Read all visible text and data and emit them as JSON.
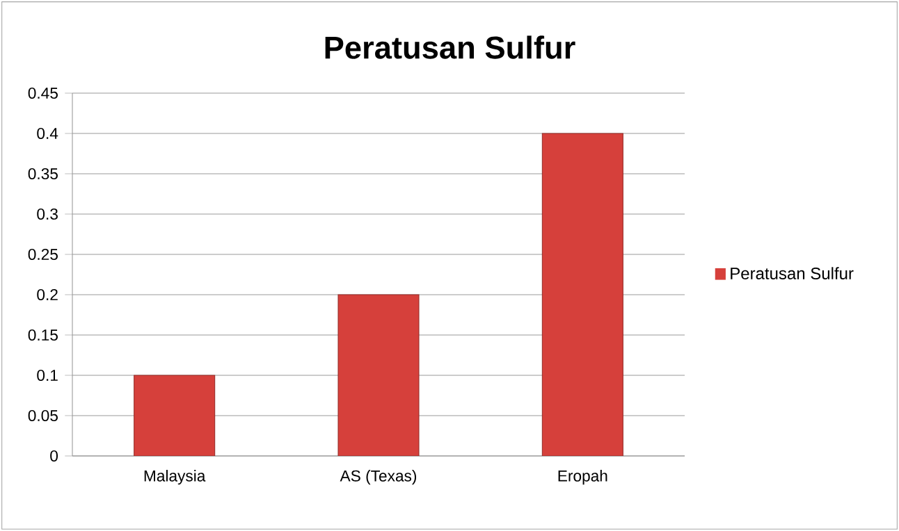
{
  "chart_data": {
    "type": "bar",
    "title": "Peratusan Sulfur",
    "categories": [
      "Malaysia",
      "AS (Texas)",
      "Eropah"
    ],
    "series": [
      {
        "name": "Peratusan Sulfur",
        "color": "#d6403b",
        "values": [
          0.1,
          0.2,
          0.4
        ]
      }
    ],
    "ylim": [
      0,
      0.45
    ],
    "yticks": [
      0,
      0.05,
      0.1,
      0.15,
      0.2,
      0.25,
      0.3,
      0.35,
      0.4,
      0.45
    ],
    "grid": "y",
    "legend": "right"
  }
}
